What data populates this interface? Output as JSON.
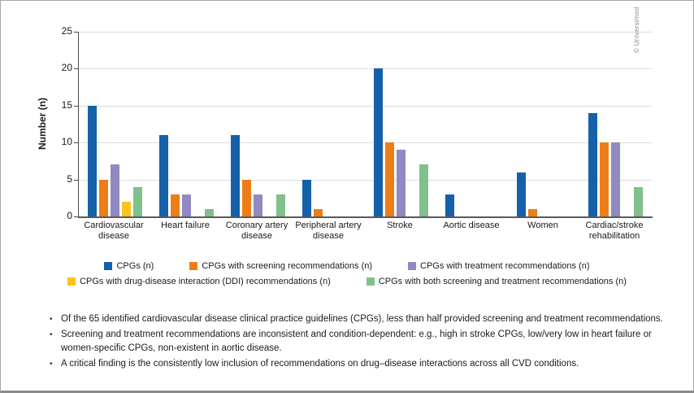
{
  "copyright": "© Universimed",
  "chart_data": {
    "type": "bar",
    "title": "",
    "xlabel": "",
    "ylabel": "Number (n)",
    "ylim": [
      0,
      25
    ],
    "yticks": [
      0,
      5,
      10,
      15,
      20,
      25
    ],
    "grid": true,
    "legend_position": "bottom",
    "categories": [
      "Cardiovascular disease",
      "Heart failure",
      "Coronary artery disease",
      "Peripheral artery disease",
      "Stroke",
      "Aortic disease",
      "Women",
      "Cardiac/stroke rehabilitation"
    ],
    "series": [
      {
        "name": "CPGs (n)",
        "color": "#1561a9",
        "values": [
          15,
          11,
          11,
          5,
          20,
          3,
          6,
          14
        ]
      },
      {
        "name": "CPGs with screening recommendations (n)",
        "color": "#ef7d16",
        "values": [
          5,
          3,
          5,
          1,
          10,
          0,
          1,
          10
        ]
      },
      {
        "name": "CPGs with treatment recommendations (n)",
        "color": "#9089c2",
        "values": [
          7,
          3,
          3,
          0,
          9,
          0,
          0,
          10
        ]
      },
      {
        "name": "CPGs with drug-disease interaction (DDI) recommendations (n)",
        "color": "#fcc31d",
        "values": [
          2,
          0,
          0,
          0,
          0,
          0,
          0,
          0
        ]
      },
      {
        "name": "CPGs with both screening and treatment recommendations (n)",
        "color": "#7fc08d",
        "values": [
          4,
          1,
          3,
          0,
          7,
          0,
          0,
          4
        ]
      }
    ]
  },
  "notes": {
    "bullets": [
      "Of the 65 identified cardiovascular disease clinical practice guidelines (CPGs), less than half provided screening and treatment recommendations.",
      "Screening and treatment recommendations are inconsistent and condition-dependent: e.g., high in stroke CPGs, low/very low in heart failure or women-specific CPGs, non-existent in aortic disease.",
      "A critical finding is the consistently low inclusion of recommendations on drug–disease interactions across all CVD conditions."
    ]
  }
}
